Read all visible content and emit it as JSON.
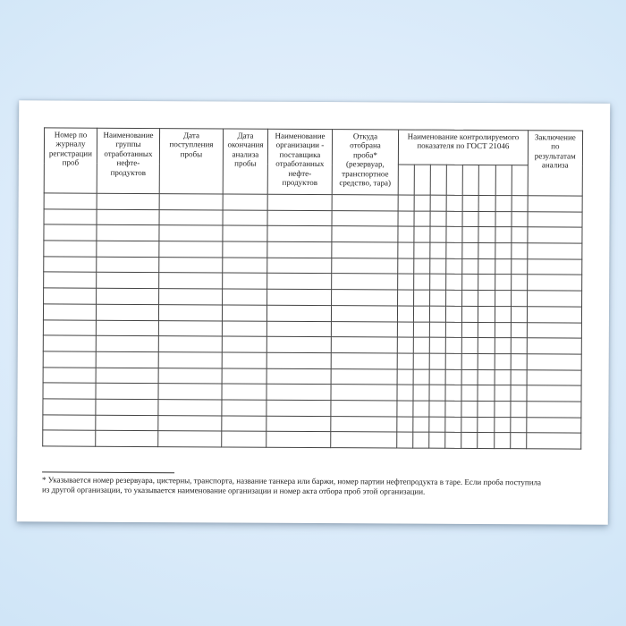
{
  "document": {
    "table": {
      "columns": [
        "Номер по\nжурналу\nрегистрации\nпроб",
        "Наименование\nгруппы\nотработанных\nнефте-\nпродуктов",
        "Дата\nпоступления\nпробы",
        "Дата\nокончания\nанализа\nпробы",
        "Наименование\nорганизации -\nпоставщика\nотработанных\nнефте-\nпродуктов",
        "Откуда\nотобрана\nпроба*\n(резервуар,\nтранспортное\nсредство, тара)",
        "Заключение\nпо\nрезультатам\nанализа"
      ],
      "indicator_group_header": "Наименование контролируемого\nпоказателя по ГОСТ 21046",
      "indicator_subcolumns": 8,
      "blank_data_rows": 16
    },
    "footnote": "* Указывается номер резервуара, цистерны, транспорта, название танкера или баржи, номер партии нефтепродукта в таре. Если проба поступила\nиз другой организации, то указывается наименование организации и номер акта отбора проб этой организации.",
    "colors": {
      "background_center": "#eaf4fd",
      "background_edge": "#c7dff3",
      "page": "#ffffff",
      "table_border": "#444444",
      "text": "#1d1d1d"
    }
  }
}
